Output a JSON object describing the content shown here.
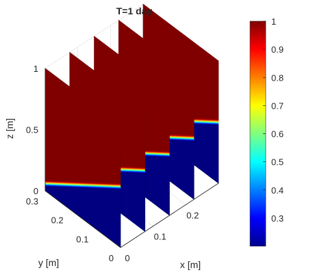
{
  "chart_data": {
    "type": "heatmap",
    "title": "T=1 day",
    "xlabel": "x [m]",
    "ylabel": "y [m]",
    "zlabel": "z [m]",
    "x_ticks": [
      0,
      0.1,
      0.2
    ],
    "y_ticks": [
      0,
      0.1,
      0.2,
      0.3
    ],
    "z_ticks": [
      0,
      0.5,
      1
    ],
    "xlim": [
      0,
      0.3
    ],
    "ylim": [
      0,
      0.3
    ],
    "zlim": [
      0,
      1
    ],
    "colorbar": {
      "ticks": [
        0.3,
        0.4,
        0.5,
        0.6,
        0.7,
        0.8,
        0.9,
        1
      ],
      "range": [
        0.2,
        1
      ],
      "colormap": "jet"
    },
    "slices": {
      "orientation": "x-normal planes",
      "x_positions": [
        0,
        0.075,
        0.15,
        0.225,
        0.3
      ],
      "low_value": 0.2,
      "high_value": 1,
      "front_boundary_z": 0.5,
      "back_boundary_z": 0.06,
      "transition_width_z": 0.04
    },
    "grid": true,
    "colors": {
      "low": "#00008f",
      "high": "#800000",
      "frame": "#262626",
      "grid": "#e6e6e6"
    }
  }
}
